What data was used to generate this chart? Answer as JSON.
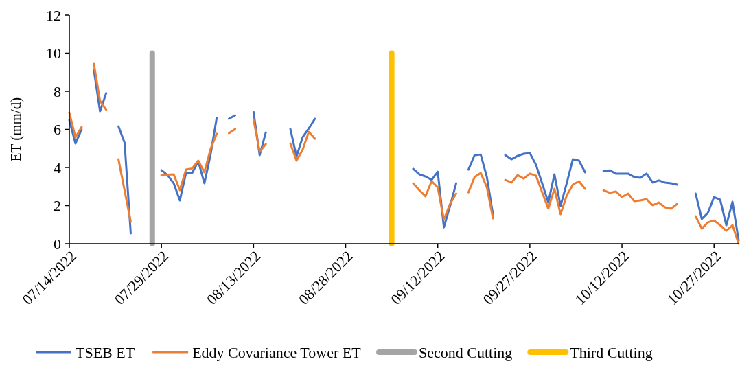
{
  "chart_data": {
    "type": "line",
    "ylabel": "ET (mm/d)",
    "x": [
      "2022-07-14",
      "2022-07-15",
      "2022-07-16",
      "2022-07-17",
      "2022-07-18",
      "2022-07-19",
      "2022-07-20",
      "2022-07-21",
      "2022-07-22",
      "2022-07-23",
      "2022-07-24",
      "2022-07-25",
      "2022-07-26",
      "2022-07-27",
      "2022-07-28",
      "2022-07-29",
      "2022-07-30",
      "2022-07-31",
      "2022-08-01",
      "2022-08-02",
      "2022-08-03",
      "2022-08-04",
      "2022-08-05",
      "2022-08-06",
      "2022-08-07",
      "2022-08-08",
      "2022-08-09",
      "2022-08-10",
      "2022-08-11",
      "2022-08-12",
      "2022-08-13",
      "2022-08-14",
      "2022-08-15",
      "2022-08-16",
      "2022-08-17",
      "2022-08-18",
      "2022-08-19",
      "2022-08-20",
      "2022-08-21",
      "2022-08-22",
      "2022-08-23",
      "2022-08-24",
      "2022-08-25",
      "2022-08-26",
      "2022-08-27",
      "2022-08-28",
      "2022-08-29",
      "2022-08-30",
      "2022-08-31",
      "2022-09-01",
      "2022-09-02",
      "2022-09-03",
      "2022-09-04",
      "2022-09-05",
      "2022-09-06",
      "2022-09-07",
      "2022-09-08",
      "2022-09-09",
      "2022-09-10",
      "2022-09-11",
      "2022-09-12",
      "2022-09-13",
      "2022-09-14",
      "2022-09-15",
      "2022-09-16",
      "2022-09-17",
      "2022-09-18",
      "2022-09-19",
      "2022-09-20",
      "2022-09-21",
      "2022-09-22",
      "2022-09-23",
      "2022-09-24",
      "2022-09-25",
      "2022-09-26",
      "2022-09-27",
      "2022-09-28",
      "2022-09-29",
      "2022-09-30",
      "2022-10-01",
      "2022-10-02",
      "2022-10-03",
      "2022-10-04",
      "2022-10-05",
      "2022-10-06",
      "2022-10-07",
      "2022-10-08",
      "2022-10-09",
      "2022-10-10",
      "2022-10-11",
      "2022-10-12",
      "2022-10-13",
      "2022-10-14",
      "2022-10-15",
      "2022-10-16",
      "2022-10-17",
      "2022-10-18",
      "2022-10-19",
      "2022-10-20",
      "2022-10-21",
      "2022-10-22",
      "2022-10-23",
      "2022-10-24",
      "2022-10-25",
      "2022-10-26",
      "2022-10-27",
      "2022-10-28",
      "2022-10-29",
      "2022-10-30",
      "2022-10-31"
    ],
    "series": [
      {
        "name": "TSEB ET",
        "color": "#4472c4",
        "values": [
          6.49,
          5.26,
          6.0,
          null,
          9.12,
          6.95,
          7.9,
          null,
          6.16,
          5.3,
          0.54,
          null,
          null,
          null,
          null,
          3.86,
          3.6,
          3.17,
          2.27,
          3.71,
          3.71,
          4.32,
          3.17,
          4.68,
          6.6,
          null,
          6.56,
          6.74,
          null,
          null,
          6.92,
          4.65,
          5.84,
          null,
          null,
          null,
          6.02,
          4.58,
          5.59,
          6.05,
          6.56,
          null,
          null,
          null,
          null,
          null,
          null,
          null,
          null,
          null,
          null,
          null,
          null,
          null,
          null,
          null,
          3.93,
          3.64,
          3.53,
          3.35,
          3.78,
          0.86,
          1.98,
          3.17,
          null,
          3.89,
          4.65,
          4.68,
          3.5,
          1.51,
          null,
          4.65,
          4.43,
          4.61,
          4.72,
          4.76,
          4.14,
          3.17,
          2.16,
          3.64,
          1.98,
          3.17,
          4.43,
          4.36,
          3.75,
          null,
          null,
          3.82,
          3.85,
          3.68,
          3.68,
          3.68,
          3.5,
          3.46,
          3.68,
          3.21,
          3.32,
          3.21,
          3.17,
          3.1,
          null,
          null,
          2.63,
          1.3,
          1.62,
          2.45,
          2.31,
          0.97,
          2.2,
          0.18
        ]
      },
      {
        "name": "Eddy Covariance Tower ET",
        "color": "#ed7d31",
        "values": [
          6.88,
          5.58,
          6.13,
          null,
          9.44,
          7.5,
          7.03,
          null,
          4.43,
          2.79,
          1.15,
          null,
          null,
          null,
          null,
          3.6,
          3.62,
          3.64,
          2.81,
          3.89,
          3.95,
          4.36,
          3.75,
          4.97,
          5.77,
          null,
          5.8,
          6.02,
          null,
          null,
          6.52,
          4.83,
          5.23,
          null,
          null,
          null,
          5.26,
          4.36,
          4.94,
          5.87,
          5.51,
          null,
          null,
          null,
          null,
          null,
          null,
          null,
          null,
          null,
          null,
          null,
          null,
          null,
          null,
          null,
          3.17,
          2.81,
          2.49,
          3.28,
          2.96,
          1.26,
          2.09,
          2.63,
          null,
          2.7,
          3.5,
          3.71,
          2.96,
          1.33,
          null,
          3.35,
          3.21,
          3.6,
          3.42,
          3.68,
          3.57,
          2.7,
          1.84,
          2.88,
          1.55,
          2.52,
          3.1,
          3.28,
          2.88,
          null,
          null,
          2.81,
          2.67,
          2.74,
          2.45,
          2.63,
          2.23,
          2.27,
          2.34,
          2.02,
          2.16,
          1.91,
          1.84,
          2.09,
          null,
          null,
          1.44,
          0.79,
          1.12,
          1.22,
          0.97,
          0.68,
          0.97,
          0.0
        ]
      },
      {
        "name": "Second Cutting",
        "color": "#a5a5a5",
        "x": [
          "2022-07-27T12:00",
          "2022-07-27T12:00"
        ],
        "values": [
          0,
          10
        ]
      },
      {
        "name": "Third Cutting",
        "color": "#ffc000",
        "x": [
          "2022-09-04T12:00",
          "2022-09-04T12:00"
        ],
        "values": [
          0,
          10
        ]
      }
    ],
    "xlim": [
      "2022-07-14",
      "2022-10-31"
    ],
    "xticks": [
      {
        "value": "2022-07-14",
        "label": "07/14/2022"
      },
      {
        "value": "2022-07-29",
        "label": "07/29/2022"
      },
      {
        "value": "2022-08-13",
        "label": "08/13/2022"
      },
      {
        "value": "2022-08-28",
        "label": "08/28/2022"
      },
      {
        "value": "2022-09-12",
        "label": "09/12/2022"
      },
      {
        "value": "2022-09-27",
        "label": "09/27/2022"
      },
      {
        "value": "2022-10-12",
        "label": "10/12/2022"
      },
      {
        "value": "2022-10-27",
        "label": "10/27/2022"
      }
    ],
    "ylim": [
      0,
      12
    ],
    "yticks": [
      0,
      2,
      4,
      6,
      8,
      10,
      12
    ],
    "grid": false,
    "legend": "bottom",
    "marker": "none",
    "line_style": "solid"
  }
}
